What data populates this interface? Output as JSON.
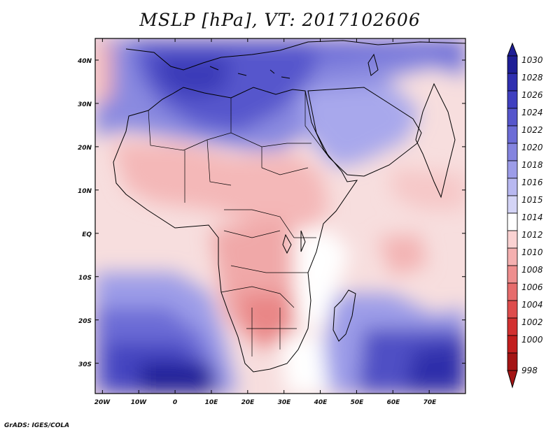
{
  "title": "MSLP [hPa], VT: 2017102606",
  "credit": "GrADS: IGES/COLA",
  "map": {
    "lat_labels": [
      "40N",
      "30N",
      "20N",
      "10N",
      "EQ",
      "10S",
      "20S",
      "30S"
    ],
    "lat_values": [
      40,
      30,
      20,
      10,
      0,
      -10,
      -20,
      -30
    ],
    "lon_labels": [
      "20W",
      "10W",
      "0",
      "10E",
      "20E",
      "30E",
      "40E",
      "50E",
      "60E",
      "70E"
    ],
    "lon_values": [
      -20,
      -10,
      0,
      10,
      20,
      30,
      40,
      50,
      60,
      70
    ],
    "lon_range": [
      -22,
      80
    ],
    "lat_range": [
      -37,
      45
    ],
    "background_color": "#ffffff",
    "coastline_color": "#000000"
  },
  "colorbar": {
    "labels": [
      "1030",
      "1028",
      "1026",
      "1024",
      "1022",
      "1020",
      "1018",
      "1016",
      "1015",
      "1014",
      "1012",
      "1010",
      "1008",
      "1006",
      "1004",
      "1002",
      "1000",
      "998"
    ],
    "colors": [
      "#1e1e96",
      "#2f2fb0",
      "#4040c0",
      "#5656cc",
      "#6c6cd6",
      "#8484df",
      "#9c9ce8",
      "#b8b8f0",
      "#d4d4f6",
      "#ffffff",
      "#fad2d2",
      "#f4b0b0",
      "#ee8e8e",
      "#e66c6c",
      "#de4c4c",
      "#d23030",
      "#c21e1e",
      "#a41414"
    ]
  }
}
